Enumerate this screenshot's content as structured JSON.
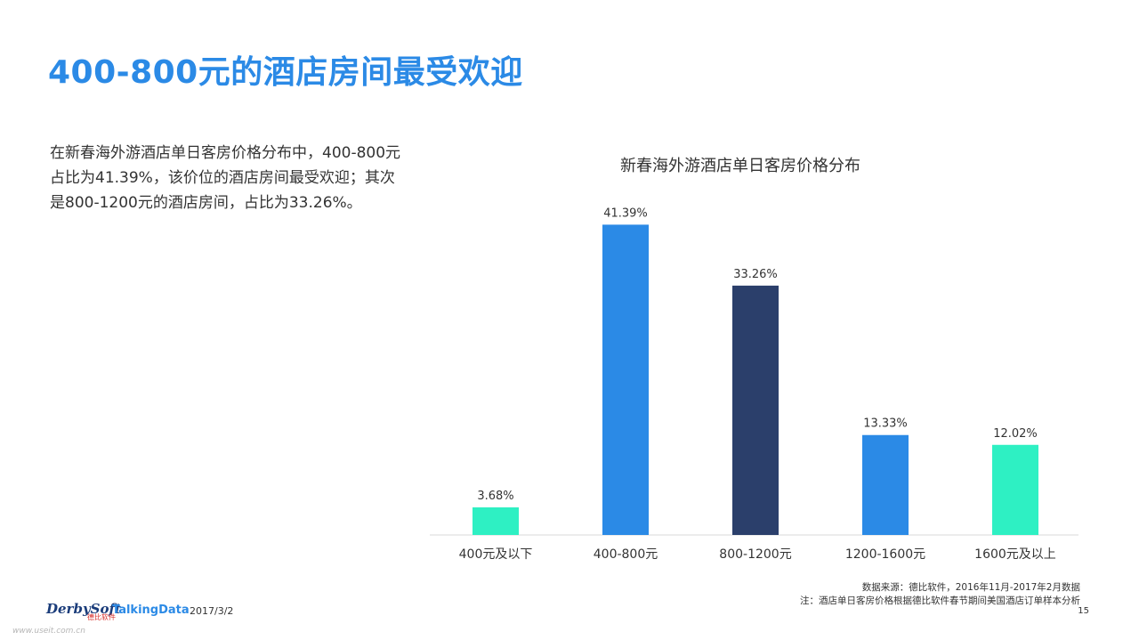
{
  "title": "400-800元的酒店房间最受欢迎",
  "description": "在新春海外游酒店单日客房价格分布中，400-800元占比为41.39%，该价位的酒店房间最受欢迎；其次是800-1200元的酒店房间，占比为33.26%。",
  "chart_data": {
    "type": "bar",
    "title": "新春海外游酒店单日客房价格分布",
    "categories": [
      "400元及以下",
      "400-800元",
      "800-1200元",
      "1200-1600元",
      "1600元及以上"
    ],
    "values": [
      3.68,
      41.39,
      33.26,
      13.33,
      12.02
    ],
    "labels": [
      "3.68%",
      "41.39%",
      "33.26%",
      "13.33%",
      "12.02%"
    ],
    "colors": [
      "#2ef0c3",
      "#2b8ae6",
      "#2b3f6b",
      "#2b8ae6",
      "#2ef0c3"
    ],
    "ylim": [
      0,
      45
    ],
    "grid": false,
    "xlabel": "",
    "ylabel": ""
  },
  "source": {
    "line1": "数据来源：德比软件，2016年11月-2017年2月数据",
    "line2": "注：酒店单日客房价格根据德比软件春节期间美国酒店订单样本分析"
  },
  "footer": {
    "logo_derby": "DerbySoft",
    "logo_derby_sub": "德比软件",
    "logo_talking": "TalkingData",
    "date": "2017/3/2",
    "page_number": "15",
    "watermark": "www.useit.com.cn"
  }
}
